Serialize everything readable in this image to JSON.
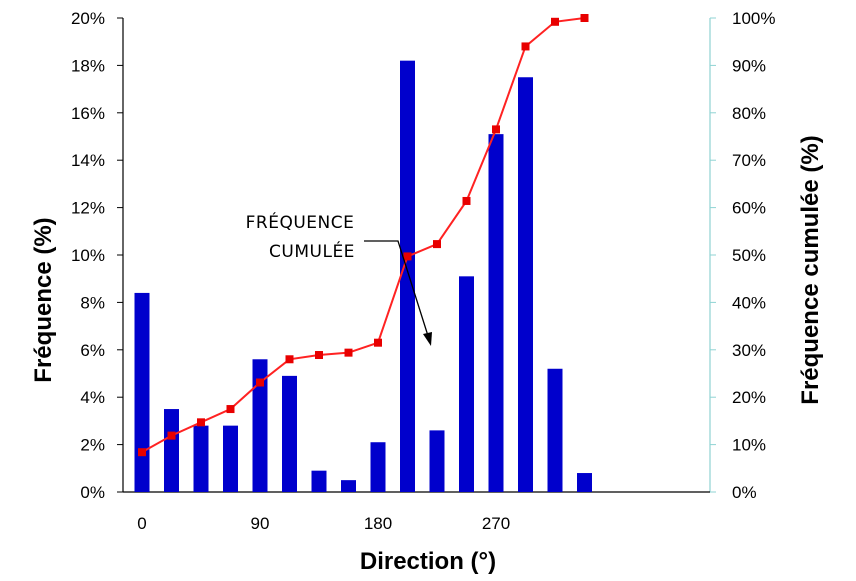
{
  "chart_data": {
    "type": "bar",
    "xlabel": "Direction (°)",
    "ylabel": "Fréquence (%)",
    "y2label": "Fréquence cumulée (%)",
    "x_tick_labels": [
      "0",
      "90",
      "180",
      "270"
    ],
    "x_tick_values": [
      0,
      90,
      180,
      270
    ],
    "y_tick_labels": [
      "0%",
      "2%",
      "4%",
      "6%",
      "8%",
      "10%",
      "12%",
      "14%",
      "16%",
      "18%",
      "20%"
    ],
    "y2_tick_labels": [
      "0%",
      "10%",
      "20%",
      "30%",
      "40%",
      "50%",
      "60%",
      "70%",
      "80%",
      "90%",
      "100%"
    ],
    "ylim": [
      0,
      20
    ],
    "y2lim": [
      0,
      100
    ],
    "grid": false,
    "series": [
      {
        "type": "bar",
        "axis": "left",
        "color": "#0000cc",
        "x": [
          0,
          22.5,
          45,
          67.5,
          90,
          112.5,
          135,
          157.5,
          180,
          202.5,
          225,
          247.5,
          270,
          292.5,
          315,
          337.5
        ],
        "values": [
          8.4,
          3.5,
          2.8,
          2.8,
          5.6,
          4.9,
          0.9,
          0.5,
          2.1,
          18.2,
          2.6,
          9.1,
          15.1,
          17.5,
          5.2,
          0.8
        ]
      },
      {
        "type": "line",
        "axis": "right",
        "color": "#ff2222",
        "marker_color": "#e80000",
        "x": [
          0,
          22.5,
          45,
          67.5,
          90,
          112.5,
          135,
          157.5,
          180,
          202.5,
          225,
          247.5,
          270,
          292.5,
          315,
          337.5
        ],
        "values": [
          8.4,
          11.9,
          14.7,
          17.5,
          23.1,
          28.0,
          28.9,
          29.4,
          31.5,
          49.7,
          52.3,
          61.4,
          76.5,
          94.0,
          99.2,
          100.0
        ]
      }
    ],
    "annotation": {
      "lines": [
        "FRÉQUENCE",
        "CUMULÉE"
      ]
    }
  }
}
